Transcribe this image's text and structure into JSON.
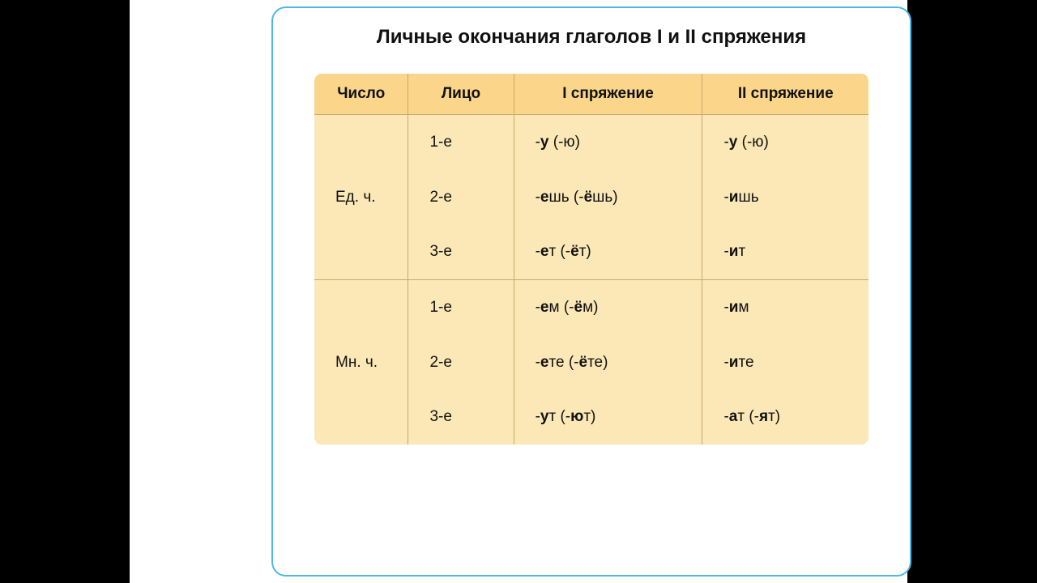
{
  "title": "Личные окончания глаголов I и II спряжения",
  "columns": [
    "Число",
    "Лицо",
    "I спряжение",
    "II спряжение"
  ],
  "column_widths": [
    "17%",
    "19%",
    "34%",
    "30%"
  ],
  "groups": [
    {
      "number": "Ед. ч.",
      "rows": [
        {
          "person": "1-е",
          "conj1_pre": "-",
          "conj1_bold": "у",
          "conj1_post": " (-ю)",
          "conj2_pre": "-",
          "conj2_bold": "у",
          "conj2_post": " (-ю)"
        },
        {
          "person": "2-е",
          "conj1_pre": "-",
          "conj1_bold": "е",
          "conj1_post": "шь (-",
          "conj1_bold2": "ё",
          "conj1_post2": "шь)",
          "conj2_pre": "-",
          "conj2_bold": "и",
          "conj2_post": "шь"
        },
        {
          "person": "3-е",
          "conj1_pre": "-",
          "conj1_bold": "е",
          "conj1_post": "т (-",
          "conj1_bold2": "ё",
          "conj1_post2": "т)",
          "conj2_pre": "-",
          "conj2_bold": "и",
          "conj2_post": "т"
        }
      ]
    },
    {
      "number": "Мн. ч.",
      "rows": [
        {
          "person": "1-е",
          "conj1_pre": "-",
          "conj1_bold": "е",
          "conj1_post": "м (-",
          "conj1_bold2": "ё",
          "conj1_post2": "м)",
          "conj2_pre": "-",
          "conj2_bold": "и",
          "conj2_post": "м"
        },
        {
          "person": "2-е",
          "conj1_pre": "-",
          "conj1_bold": "е",
          "conj1_post": "те (-",
          "conj1_bold2": "ё",
          "conj1_post2": "те)",
          "conj2_pre": "-",
          "conj2_bold": "и",
          "conj2_post": "те"
        },
        {
          "person": "3-е",
          "conj1_pre": "-",
          "conj1_bold": "у",
          "conj1_post": "т (-",
          "conj1_bold2": "ю",
          "conj1_post2": "т)",
          "conj2_pre": "-",
          "conj2_bold": "а",
          "conj2_post": "т (-",
          "conj2_bold2": "я",
          "conj2_post2": "т)"
        }
      ]
    }
  ],
  "colors": {
    "page_bg": "#000000",
    "slide_bg": "#ffffff",
    "card_border": "#4db8e8",
    "header_bg": "#fbd68a",
    "cell_bg": "#fbe8b6",
    "table_border": "#c9a86a",
    "text": "#111111"
  },
  "fonts": {
    "title_size": 24,
    "cell_size": 19,
    "family": "Arial"
  }
}
